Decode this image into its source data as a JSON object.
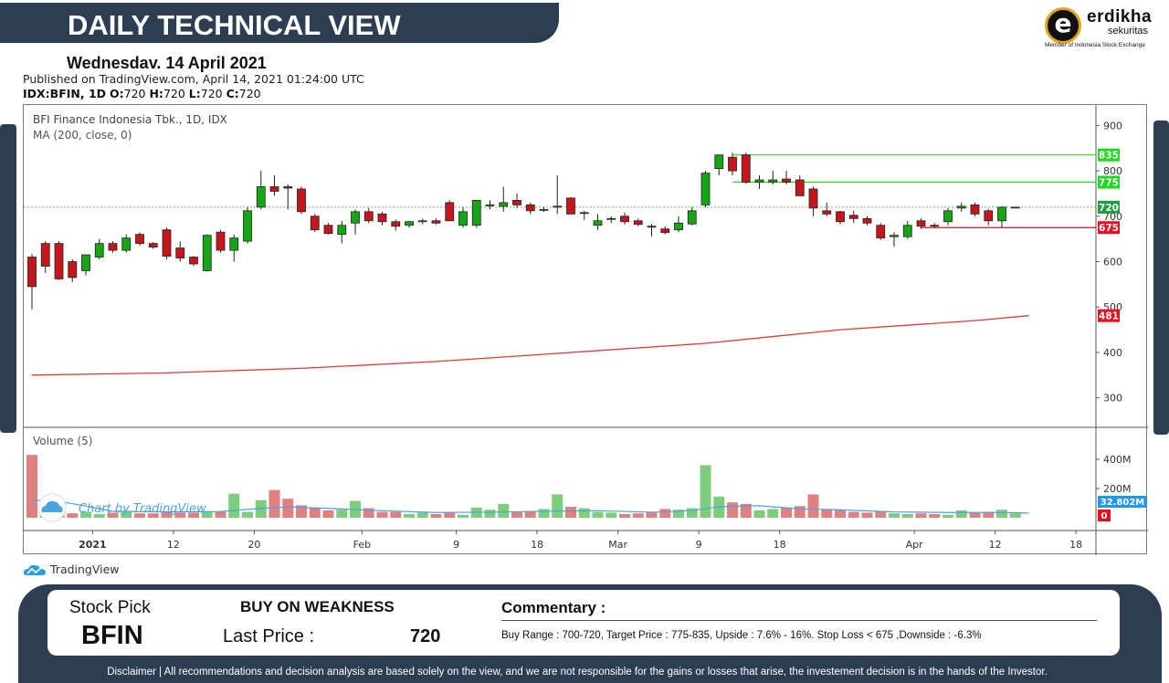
{
  "header": {
    "title": "DAILY TECHNICAL VIEW",
    "date": "Wednesdav. 14 April 2021",
    "published": "Published on TradingView.com, April 14, 2021 01:24:00 UTC",
    "symbol_prefix": "IDX:BFIN, 1D",
    "o_label": "O:",
    "o_value": "720",
    "h_label": "H:",
    "h_value": "720",
    "l_label": "L:",
    "l_value": "720",
    "c_label": "C:",
    "c_value": "720"
  },
  "logo": {
    "name": "erdikha",
    "sub": "sekuritas",
    "member": "Member of Indonesia Stock Exchange"
  },
  "colors": {
    "navy": "#2e3e52",
    "up": "#14a614",
    "down": "#c4161c",
    "ma_line": "#e53935",
    "volume_up": "#7dcd7d",
    "volume_down": "#e08080",
    "volume_ma": "#4aa3df",
    "resistance": "#22dd22",
    "support": "#e8101e"
  },
  "chart_data": {
    "type": "candlestick",
    "title": "BFI Finance Indonesia Tbk., 1D, IDX",
    "indicator_label": "MA (200, close, 0)",
    "volume_label": "Volume (5)",
    "y_ticks": [
      300,
      400,
      500,
      600,
      700,
      800,
      900
    ],
    "ylim": [
      235,
      945
    ],
    "volume_ticks": [
      "200M",
      "400M"
    ],
    "volume_ylim": [
      0,
      450
    ],
    "x_tick_labels": [
      "2021",
      "12",
      "20",
      "Feb",
      "9",
      "18",
      "Mar",
      "9",
      "18",
      "Apr",
      "12",
      "18"
    ],
    "x_tick_index": [
      4.5,
      10.5,
      16.5,
      24.5,
      31.5,
      37.5,
      43.5,
      49.5,
      55.5,
      65.5,
      71.5,
      77.5
    ],
    "watermark": "Chart by TradingView",
    "candles": [
      {
        "o": 610,
        "h": 617,
        "l": 495,
        "c": 545
      },
      {
        "o": 640,
        "h": 645,
        "l": 575,
        "c": 590
      },
      {
        "o": 640,
        "h": 645,
        "l": 560,
        "c": 562
      },
      {
        "o": 600,
        "h": 605,
        "l": 555,
        "c": 565
      },
      {
        "o": 580,
        "h": 615,
        "l": 570,
        "c": 615
      },
      {
        "o": 610,
        "h": 650,
        "l": 605,
        "c": 640
      },
      {
        "o": 640,
        "h": 645,
        "l": 620,
        "c": 625
      },
      {
        "o": 625,
        "h": 660,
        "l": 620,
        "c": 652
      },
      {
        "o": 660,
        "h": 665,
        "l": 635,
        "c": 640
      },
      {
        "o": 640,
        "h": 643,
        "l": 628,
        "c": 632
      },
      {
        "o": 670,
        "h": 675,
        "l": 605,
        "c": 612
      },
      {
        "o": 630,
        "h": 645,
        "l": 600,
        "c": 608
      },
      {
        "o": 610,
        "h": 612,
        "l": 590,
        "c": 595
      },
      {
        "o": 580,
        "h": 660,
        "l": 578,
        "c": 658
      },
      {
        "o": 665,
        "h": 670,
        "l": 620,
        "c": 625
      },
      {
        "o": 625,
        "h": 660,
        "l": 600,
        "c": 652
      },
      {
        "o": 645,
        "h": 720,
        "l": 640,
        "c": 712
      },
      {
        "o": 720,
        "h": 800,
        "l": 715,
        "c": 765
      },
      {
        "o": 765,
        "h": 790,
        "l": 745,
        "c": 755
      },
      {
        "o": 765,
        "h": 770,
        "l": 715,
        "c": 762
      },
      {
        "o": 760,
        "h": 765,
        "l": 705,
        "c": 710
      },
      {
        "o": 700,
        "h": 705,
        "l": 665,
        "c": 670
      },
      {
        "o": 680,
        "h": 685,
        "l": 660,
        "c": 662
      },
      {
        "o": 660,
        "h": 690,
        "l": 640,
        "c": 680
      },
      {
        "o": 685,
        "h": 715,
        "l": 660,
        "c": 710
      },
      {
        "o": 710,
        "h": 718,
        "l": 685,
        "c": 690
      },
      {
        "o": 705,
        "h": 710,
        "l": 680,
        "c": 688
      },
      {
        "o": 688,
        "h": 692,
        "l": 668,
        "c": 678
      },
      {
        "o": 680,
        "h": 690,
        "l": 675,
        "c": 688
      },
      {
        "o": 690,
        "h": 695,
        "l": 682,
        "c": 690
      },
      {
        "o": 690,
        "h": 695,
        "l": 682,
        "c": 685
      },
      {
        "o": 730,
        "h": 735,
        "l": 690,
        "c": 690
      },
      {
        "o": 680,
        "h": 720,
        "l": 675,
        "c": 710
      },
      {
        "o": 680,
        "h": 735,
        "l": 675,
        "c": 735
      },
      {
        "o": 725,
        "h": 735,
        "l": 715,
        "c": 725
      },
      {
        "o": 722,
        "h": 765,
        "l": 710,
        "c": 730
      },
      {
        "o": 735,
        "h": 750,
        "l": 718,
        "c": 725
      },
      {
        "o": 725,
        "h": 730,
        "l": 705,
        "c": 712
      },
      {
        "o": 715,
        "h": 720,
        "l": 710,
        "c": 715
      },
      {
        "o": 720,
        "h": 790,
        "l": 705,
        "c": 722
      },
      {
        "o": 740,
        "h": 742,
        "l": 705,
        "c": 705
      },
      {
        "o": 708,
        "h": 712,
        "l": 692,
        "c": 708
      },
      {
        "o": 680,
        "h": 705,
        "l": 670,
        "c": 690
      },
      {
        "o": 695,
        "h": 700,
        "l": 685,
        "c": 695
      },
      {
        "o": 700,
        "h": 708,
        "l": 682,
        "c": 688
      },
      {
        "o": 690,
        "h": 695,
        "l": 678,
        "c": 682
      },
      {
        "o": 678,
        "h": 683,
        "l": 655,
        "c": 677
      },
      {
        "o": 672,
        "h": 678,
        "l": 660,
        "c": 664
      },
      {
        "o": 670,
        "h": 700,
        "l": 665,
        "c": 685
      },
      {
        "o": 683,
        "h": 720,
        "l": 680,
        "c": 712
      },
      {
        "o": 725,
        "h": 800,
        "l": 720,
        "c": 795
      },
      {
        "o": 805,
        "h": 835,
        "l": 790,
        "c": 835
      },
      {
        "o": 830,
        "h": 840,
        "l": 790,
        "c": 800
      },
      {
        "o": 835,
        "h": 840,
        "l": 772,
        "c": 775
      },
      {
        "o": 775,
        "h": 790,
        "l": 760,
        "c": 780
      },
      {
        "o": 775,
        "h": 800,
        "l": 770,
        "c": 780
      },
      {
        "o": 782,
        "h": 800,
        "l": 770,
        "c": 775
      },
      {
        "o": 780,
        "h": 790,
        "l": 745,
        "c": 745
      },
      {
        "o": 760,
        "h": 765,
        "l": 700,
        "c": 718
      },
      {
        "o": 712,
        "h": 730,
        "l": 700,
        "c": 705
      },
      {
        "o": 710,
        "h": 712,
        "l": 682,
        "c": 688
      },
      {
        "o": 702,
        "h": 712,
        "l": 685,
        "c": 695
      },
      {
        "o": 695,
        "h": 700,
        "l": 680,
        "c": 685
      },
      {
        "o": 680,
        "h": 685,
        "l": 648,
        "c": 652
      },
      {
        "o": 655,
        "h": 665,
        "l": 633,
        "c": 658
      },
      {
        "o": 655,
        "h": 690,
        "l": 650,
        "c": 680
      },
      {
        "o": 690,
        "h": 695,
        "l": 672,
        "c": 678
      },
      {
        "o": 680,
        "h": 685,
        "l": 675,
        "c": 678
      },
      {
        "o": 688,
        "h": 718,
        "l": 680,
        "c": 712
      },
      {
        "o": 718,
        "h": 730,
        "l": 710,
        "c": 722
      },
      {
        "o": 725,
        "h": 730,
        "l": 700,
        "c": 705
      },
      {
        "o": 712,
        "h": 716,
        "l": 680,
        "c": 690
      },
      {
        "o": 690,
        "h": 722,
        "l": 675,
        "c": 720
      },
      {
        "o": 720,
        "h": 720,
        "l": 720,
        "c": 720
      }
    ],
    "volume": [
      430,
      55,
      35,
      30,
      40,
      25,
      35,
      40,
      30,
      30,
      40,
      35,
      35,
      45,
      40,
      165,
      40,
      120,
      190,
      130,
      85,
      70,
      50,
      55,
      115,
      65,
      40,
      40,
      25,
      35,
      25,
      35,
      20,
      70,
      55,
      95,
      40,
      45,
      60,
      160,
      75,
      65,
      40,
      35,
      25,
      30,
      40,
      60,
      55,
      65,
      360,
      145,
      105,
      95,
      50,
      60,
      70,
      80,
      160,
      60,
      55,
      40,
      35,
      45,
      30,
      25,
      30,
      25,
      20,
      50,
      35,
      40,
      55,
      30
    ],
    "ma200": [
      {
        "i": 0,
        "v": 350
      },
      {
        "i": 10,
        "v": 355
      },
      {
        "i": 20,
        "v": 365
      },
      {
        "i": 30,
        "v": 380
      },
      {
        "i": 40,
        "v": 400
      },
      {
        "i": 50,
        "v": 420
      },
      {
        "i": 55,
        "v": 435
      },
      {
        "i": 60,
        "v": 450
      },
      {
        "i": 70,
        "v": 470
      },
      {
        "i": 74,
        "v": 481
      }
    ],
    "volume_ma": [
      {
        "i": 0,
        "v": 250
      },
      {
        "i": 2,
        "v": 230
      },
      {
        "i": 4,
        "v": 150
      },
      {
        "i": 6,
        "v": 60
      },
      {
        "i": 10,
        "v": 50
      },
      {
        "i": 14,
        "v": 55
      },
      {
        "i": 17,
        "v": 110
      },
      {
        "i": 19,
        "v": 135
      },
      {
        "i": 22,
        "v": 110
      },
      {
        "i": 26,
        "v": 70
      },
      {
        "i": 30,
        "v": 40
      },
      {
        "i": 34,
        "v": 45
      },
      {
        "i": 38,
        "v": 60
      },
      {
        "i": 42,
        "v": 70
      },
      {
        "i": 46,
        "v": 45
      },
      {
        "i": 49,
        "v": 70
      },
      {
        "i": 51,
        "v": 140
      },
      {
        "i": 54,
        "v": 155
      },
      {
        "i": 57,
        "v": 100
      },
      {
        "i": 60,
        "v": 85
      },
      {
        "i": 64,
        "v": 50
      },
      {
        "i": 68,
        "v": 40
      },
      {
        "i": 72,
        "v": 40
      },
      {
        "i": 74,
        "v": 30
      }
    ],
    "levels": [
      {
        "label": "835",
        "value": 835,
        "color": "#22dd22",
        "from": 52
      },
      {
        "label": "775",
        "value": 775,
        "color": "#22dd22",
        "from": 52
      },
      {
        "label": "675",
        "value": 675,
        "color": "#e8101e",
        "from": 66
      }
    ],
    "last_price_label": "720",
    "ma_label": "481",
    "volume_last_label": "32.802M",
    "volume_zero_label": "0"
  },
  "tv_footer": "TradingView",
  "pick": {
    "stock_pick_label": "Stock Pick",
    "code": "BFIN",
    "recommendation": "BUY ON WEAKNESS",
    "last_price_label": "Last Price :",
    "last_price_value": "720",
    "commentary_label": "Commentary :",
    "commentary_text": "Buy Range : 700-720, Target Price : 775-835, Upside : 7.6% - 16%. Stop Loss < 675 ,Downside : -6.3%"
  },
  "disclaimer": "Disclaimer | All recommendations and decision analysis are based solely on the view, and we are not responsible for the gains or losses that arise, the investement decision is in the hands of the Investor."
}
